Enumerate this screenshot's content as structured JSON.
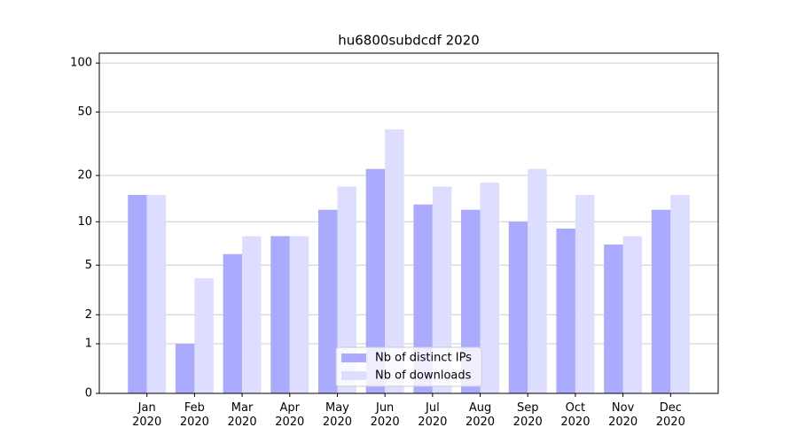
{
  "chart_data": {
    "type": "bar",
    "title": "hu6800subdcdf 2020",
    "categories": [
      "Jan\n2020",
      "Feb\n2020",
      "Mar\n2020",
      "Apr\n2020",
      "May\n2020",
      "Jun\n2020",
      "Jul\n2020",
      "Aug\n2020",
      "Sep\n2020",
      "Oct\n2020",
      "Nov\n2020",
      "Dec\n2020"
    ],
    "series": [
      {
        "name": "Nb of distinct IPs",
        "color": "#aaaaff",
        "values": [
          15,
          1,
          6,
          8,
          12,
          22,
          13,
          12,
          10,
          9,
          7,
          12
        ]
      },
      {
        "name": "Nb of downloads",
        "color": "#ddddff",
        "values": [
          15,
          4,
          8,
          8,
          17,
          39,
          17,
          18,
          22,
          15,
          8,
          15
        ]
      }
    ],
    "y_scale": "log1p",
    "ylim": [
      0,
      115
    ],
    "yticks": [
      0,
      1,
      2,
      5,
      10,
      20,
      50,
      100
    ],
    "grid": true,
    "legend": "lower center"
  }
}
